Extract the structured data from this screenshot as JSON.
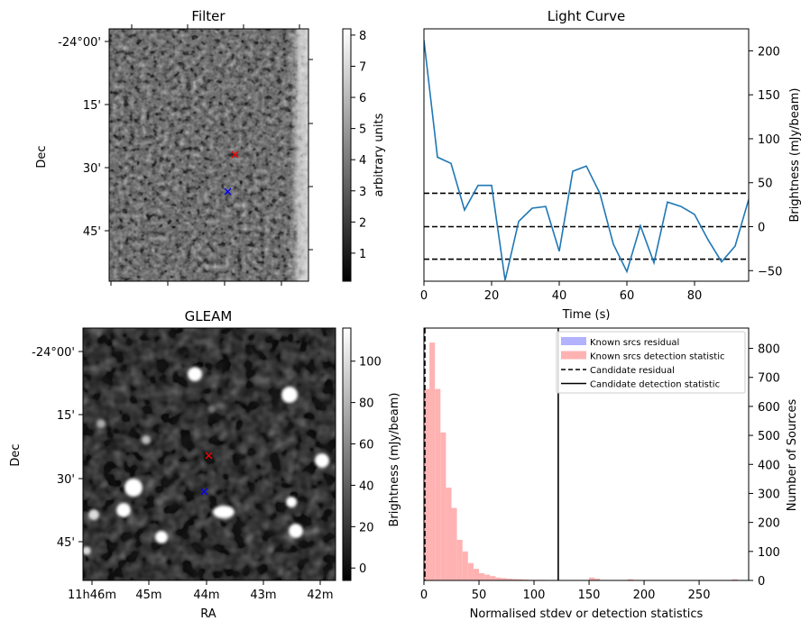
{
  "chart_data": [
    {
      "type": "image",
      "panel": "filter",
      "title": "Filter",
      "ylabel": "Dec",
      "y_ticks": [
        "-24°00'",
        "15'",
        "30'",
        "45'"
      ],
      "colorbar": {
        "label": "arbitrary units",
        "ticks": [
          1,
          2,
          3,
          4,
          5,
          6,
          7,
          8
        ],
        "range": [
          0.1,
          8.2
        ]
      },
      "markers": [
        {
          "name": "candidate",
          "color": "#ff0000",
          "symbol": "x"
        },
        {
          "name": "known",
          "color": "#0000ff",
          "symbol": "x"
        }
      ]
    },
    {
      "type": "line",
      "panel": "light-curve",
      "title": "Light Curve",
      "xlabel": "Time (s)",
      "ylabel": "Brightness (mJy/beam)",
      "xlim": [
        0,
        96
      ],
      "ylim": [
        -62,
        225
      ],
      "x_ticks": [
        0,
        20,
        40,
        60,
        80
      ],
      "y_ticks": [
        -50,
        0,
        50,
        100,
        150,
        200
      ],
      "x": [
        0,
        4,
        8,
        12,
        16,
        20,
        24,
        28,
        32,
        36,
        40,
        44,
        48,
        52,
        56,
        60,
        64,
        68,
        72,
        76,
        80,
        84,
        88,
        92,
        96
      ],
      "y": [
        212,
        79,
        72,
        19,
        47,
        47,
        -61,
        6,
        21,
        23,
        -28,
        63,
        69,
        38,
        -20,
        -51,
        1,
        -41,
        28,
        23,
        14,
        -15,
        -40,
        -22,
        31
      ],
      "hlines": [
        {
          "y": 38,
          "style": "dashed"
        },
        {
          "y": 0,
          "style": "dashed"
        },
        {
          "y": -37,
          "style": "dashed"
        }
      ]
    },
    {
      "type": "image",
      "panel": "gleam",
      "title": "GLEAM",
      "xlabel": "RA",
      "ylabel": "Dec",
      "x_ticks": [
        "11h46m",
        "45m",
        "44m",
        "43m",
        "42m"
      ],
      "y_ticks": [
        "-24°00'",
        "15'",
        "30'",
        "45'"
      ],
      "colorbar": {
        "ticks": [
          0,
          20,
          40,
          60,
          80,
          100
        ],
        "range": [
          -6,
          116
        ]
      },
      "markers": [
        {
          "name": "candidate",
          "color": "#ff0000",
          "symbol": "x"
        },
        {
          "name": "known",
          "color": "#0000ff",
          "symbol": "x"
        }
      ]
    },
    {
      "type": "histogram",
      "panel": "distribution",
      "xlabel": "Normalised stdev or detection statistics",
      "ylabel": "Number of Sources",
      "ylabel_left": "Brightness (mJy/beam)",
      "xlim": [
        0,
        295
      ],
      "ylim": [
        0,
        870
      ],
      "x_ticks": [
        0,
        50,
        100,
        150,
        200,
        250
      ],
      "y_ticks": [
        0,
        100,
        200,
        300,
        400,
        500,
        600,
        700,
        800
      ],
      "bin_width": 5,
      "bins_start": 0,
      "counts": [
        660,
        820,
        660,
        510,
        320,
        250,
        140,
        100,
        60,
        40,
        25,
        20,
        15,
        10,
        8,
        6,
        5,
        4,
        3,
        2,
        2,
        2,
        1,
        1,
        1,
        0,
        0,
        0,
        0,
        0,
        10,
        6,
        0,
        0,
        0,
        0,
        0,
        4,
        0,
        0,
        0,
        0,
        0,
        0,
        0,
        0,
        0,
        0,
        0,
        0,
        0,
        0,
        0,
        0,
        0,
        0,
        4,
        0,
        0
      ],
      "candidate_residual": 0,
      "candidate_detection": 122,
      "legend": [
        {
          "label": "Known srcs residual",
          "color": "#b2b2ff",
          "kind": "patch"
        },
        {
          "label": "Known srcs detection statistic",
          "color": "#ffb2b2",
          "kind": "patch"
        },
        {
          "label": "Candidate residual",
          "color": "#000000",
          "kind": "dashed"
        },
        {
          "label": "Candidate detection statistic",
          "color": "#000000",
          "kind": "solid"
        }
      ]
    }
  ]
}
